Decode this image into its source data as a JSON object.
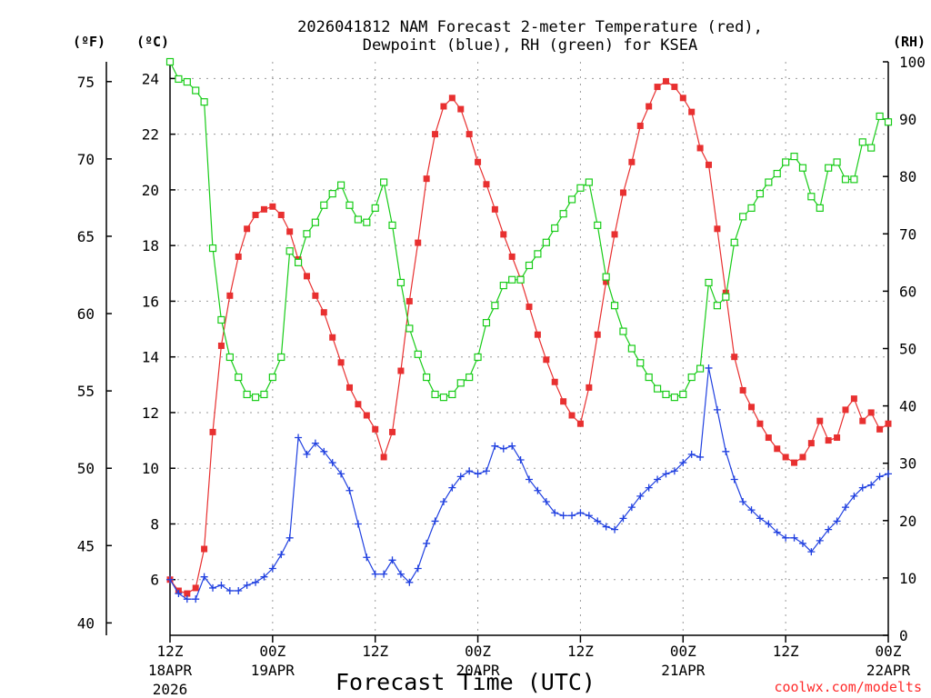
{
  "chart_data": {
    "type": "line",
    "title_line1": "2026041812 NAM Forecast 2-meter Temperature (red),",
    "title_line2": "Dewpoint (blue), RH (green) for KSEA",
    "xlabel": "Forecast Time (UTC)",
    "credit": "coolwx.com/modelts",
    "unit_labels": {
      "fahrenheit": "(ºF)",
      "celsius": "(ºC)",
      "rh": "(RH)"
    },
    "x_range_hours": [
      0,
      84
    ],
    "x_step_hours": 1,
    "x_ticks": [
      {
        "hour": 0,
        "label1": "12Z",
        "label2": "18APR",
        "label3": "2026"
      },
      {
        "hour": 12,
        "label1": "00Z",
        "label2": "19APR",
        "label3": ""
      },
      {
        "hour": 24,
        "label1": "12Z",
        "label2": "",
        "label3": ""
      },
      {
        "hour": 36,
        "label1": "00Z",
        "label2": "20APR",
        "label3": ""
      },
      {
        "hour": 48,
        "label1": "12Z",
        "label2": "",
        "label3": ""
      },
      {
        "hour": 60,
        "label1": "00Z",
        "label2": "21APR",
        "label3": ""
      },
      {
        "hour": 72,
        "label1": "12Z",
        "label2": "",
        "label3": ""
      },
      {
        "hour": 84,
        "label1": "00Z",
        "label2": "22APR",
        "label3": ""
      }
    ],
    "y_celsius": {
      "range": [
        4.0,
        24.6
      ],
      "ticks": [
        6,
        8,
        10,
        12,
        14,
        16,
        18,
        20,
        22,
        24
      ]
    },
    "y_fahrenheit": {
      "ticks": [
        40,
        45,
        50,
        55,
        60,
        65,
        70,
        75
      ]
    },
    "y_rh": {
      "range": [
        0,
        100
      ],
      "ticks": [
        0,
        10,
        20,
        30,
        40,
        50,
        60,
        70,
        80,
        90,
        100
      ]
    },
    "series": [
      {
        "name": "2-meter Temperature",
        "unit": "C",
        "color": "#e83030",
        "marker": "filled-square",
        "values": [
          6.0,
          5.6,
          5.5,
          5.7,
          7.1,
          11.3,
          14.4,
          16.2,
          17.6,
          18.6,
          19.1,
          19.3,
          19.4,
          19.1,
          18.5,
          17.5,
          16.9,
          16.2,
          15.6,
          14.7,
          13.8,
          12.9,
          12.3,
          11.9,
          11.4,
          10.4,
          11.3,
          13.5,
          16.0,
          18.1,
          20.4,
          22.0,
          23.0,
          23.3,
          22.9,
          22.0,
          21.0,
          20.2,
          19.3,
          18.4,
          17.6,
          16.8,
          15.8,
          14.8,
          13.9,
          13.1,
          12.4,
          11.9,
          11.6,
          12.9,
          14.8,
          16.7,
          18.4,
          19.9,
          21.0,
          22.3,
          23.0,
          23.7,
          23.9,
          23.7,
          23.3,
          22.8,
          21.5,
          20.9,
          18.6,
          16.3,
          14.0,
          12.8,
          12.2,
          11.6,
          11.1,
          10.7,
          10.4,
          10.2,
          10.4,
          10.9,
          11.7,
          11.0,
          11.1,
          12.1,
          12.5,
          11.7,
          12.0,
          11.4,
          11.6
        ]
      },
      {
        "name": "Dewpoint",
        "unit": "C",
        "color": "#2040e0",
        "marker": "plus",
        "values": [
          6.0,
          5.5,
          5.3,
          5.3,
          6.1,
          5.7,
          5.8,
          5.6,
          5.6,
          5.8,
          5.9,
          6.1,
          6.4,
          6.9,
          7.5,
          11.1,
          10.5,
          10.9,
          10.6,
          10.2,
          9.8,
          9.2,
          8.0,
          6.8,
          6.2,
          6.2,
          6.7,
          6.2,
          5.9,
          6.4,
          7.3,
          8.1,
          8.8,
          9.3,
          9.7,
          9.9,
          9.8,
          9.9,
          10.8,
          10.7,
          10.8,
          10.3,
          9.6,
          9.2,
          8.8,
          8.4,
          8.3,
          8.3,
          8.4,
          8.3,
          8.1,
          7.9,
          7.8,
          8.2,
          8.6,
          9.0,
          9.3,
          9.6,
          9.8,
          9.9,
          10.2,
          10.5,
          10.4,
          13.6,
          12.1,
          10.6,
          9.6,
          8.8,
          8.5,
          8.2,
          8.0,
          7.7,
          7.5,
          7.5,
          7.3,
          7.0,
          7.4,
          7.8,
          8.1,
          8.6,
          9.0,
          9.3,
          9.4,
          9.7,
          9.8
        ]
      },
      {
        "name": "RH",
        "unit": "%",
        "color": "#18cc18",
        "marker": "open-square",
        "values": [
          100,
          97,
          96.5,
          95,
          93,
          67.5,
          55,
          48.5,
          45,
          42,
          41.5,
          42,
          45,
          48.5,
          67,
          65,
          70,
          72,
          75,
          77,
          78.5,
          75,
          72.5,
          72,
          74.5,
          79,
          71.5,
          61.5,
          53.5,
          49,
          45,
          42,
          41.5,
          42,
          44,
          45,
          48.5,
          54.5,
          57.5,
          61,
          62,
          62,
          64.5,
          66.5,
          68.5,
          71,
          73.5,
          76,
          78,
          79,
          71.5,
          62.5,
          57.5,
          53,
          50,
          47.5,
          45,
          43,
          42,
          41.5,
          42,
          45,
          46.5,
          61.5,
          57.5,
          59,
          68.5,
          73,
          74.5,
          77,
          79,
          80.5,
          82.5,
          83.5,
          81.5,
          76.5,
          74.5,
          81.5,
          82.5,
          79.5,
          79.5,
          86,
          85,
          90.5,
          89.5
        ]
      }
    ]
  }
}
